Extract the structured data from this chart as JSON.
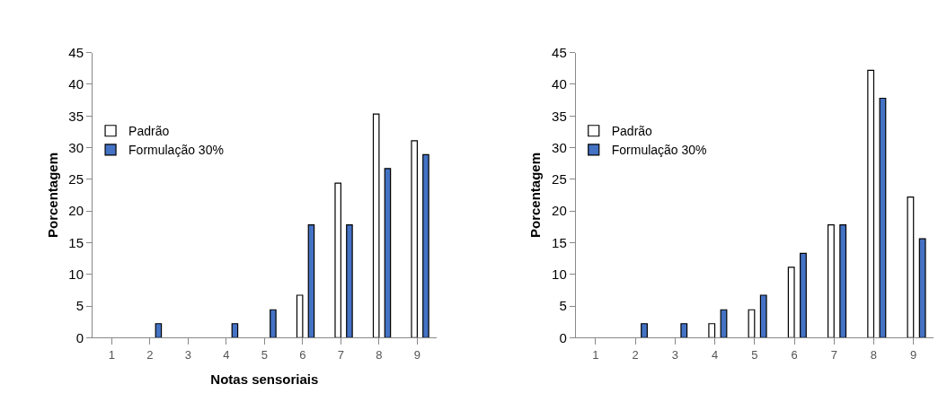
{
  "chart_data": [
    {
      "type": "bar",
      "xlabel": "Notas sensoriais",
      "ylabel": "Porcentagem",
      "categories": [
        "1",
        "2",
        "3",
        "4",
        "5",
        "6",
        "7",
        "8",
        "9"
      ],
      "series": [
        {
          "name": "Padrão",
          "color": "#ffffff",
          "values": [
            0,
            0,
            0,
            0,
            0,
            6.7,
            24.4,
            35.3,
            31.1
          ]
        },
        {
          "name": "Formulação 30%",
          "color": "#4472c4",
          "values": [
            0,
            2.2,
            0,
            2.2,
            4.4,
            17.8,
            17.8,
            26.7,
            28.9
          ]
        }
      ],
      "ylim": [
        0,
        45
      ],
      "yticks": [
        0,
        5,
        10,
        15,
        20,
        25,
        30,
        35,
        40,
        45
      ],
      "legend": "left"
    },
    {
      "type": "bar",
      "ylabel": "Porcentagem",
      "categories": [
        "1",
        "2",
        "3",
        "4",
        "5",
        "6",
        "7",
        "8",
        "9"
      ],
      "series": [
        {
          "name": "Padrão",
          "color": "#ffffff",
          "values": [
            0,
            0,
            0,
            2.2,
            4.4,
            11.1,
            17.8,
            42.2,
            22.2
          ]
        },
        {
          "name": "Formulação 30%",
          "color": "#4472c4",
          "values": [
            0,
            2.2,
            2.2,
            4.4,
            6.7,
            13.3,
            17.8,
            37.8,
            15.6
          ]
        }
      ],
      "ylim": [
        0,
        45
      ],
      "yticks": [
        0,
        5,
        10,
        15,
        20,
        25,
        30,
        35,
        40,
        45
      ],
      "legend": "left"
    }
  ]
}
